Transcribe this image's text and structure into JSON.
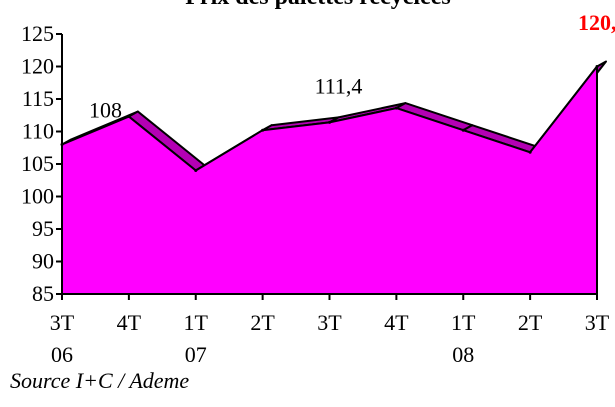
{
  "chart_data": {
    "type": "area",
    "title": "Prix des palettes recyclées",
    "categories": [
      "3T 06",
      "4T 06",
      "1T 07",
      "2T 07",
      "3T 07",
      "4T 07",
      "1T 08",
      "2T 08",
      "3T 08"
    ],
    "x_ticks": [
      {
        "quarter": "3T",
        "year": "06"
      },
      {
        "quarter": "4T",
        "year": ""
      },
      {
        "quarter": "1T",
        "year": "07"
      },
      {
        "quarter": "2T",
        "year": ""
      },
      {
        "quarter": "3T",
        "year": ""
      },
      {
        "quarter": "4T",
        "year": ""
      },
      {
        "quarter": "1T",
        "year": "08"
      },
      {
        "quarter": "2T",
        "year": ""
      },
      {
        "quarter": "3T",
        "year": ""
      }
    ],
    "values": [
      108,
      112.3,
      104,
      110.2,
      111.4,
      113.6,
      110.2,
      106.8,
      120
    ],
    "ylim": [
      85,
      125
    ],
    "yticks": [
      85,
      90,
      95,
      100,
      105,
      110,
      115,
      120,
      125
    ],
    "annotations": [
      {
        "index": 0,
        "text": "108",
        "highlight": false
      },
      {
        "index": 4,
        "text": "111,4",
        "highlight": false
      },
      {
        "index": 8,
        "text": "120,",
        "highlight": true
      }
    ],
    "colors": {
      "fill": "#ff00ff",
      "top_face": "#b400b4",
      "outline": "#000000",
      "highlight_label": "#ff0000"
    }
  },
  "source": "Source I+C / Ademe"
}
